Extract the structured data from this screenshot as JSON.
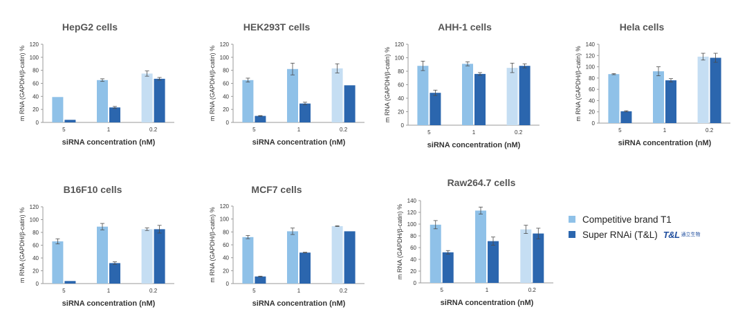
{
  "colors": {
    "competitive": "#8fc1e8",
    "competitive_light": "#c5def3",
    "super": "#2b66ae",
    "axis": "#9a9a9a",
    "text": "#333333",
    "title": "#555555"
  },
  "legend": {
    "competitive_label": "Competitive brand T1",
    "super_label": "Super RNAi (T&L)",
    "logo_text": "T&L",
    "logo_cn": "通立生物"
  },
  "chart_data": [
    {
      "type": "bar",
      "title": "HepG2 cells",
      "xlabel": "siRNA concentration (nM)",
      "ylabel": "m RNA (GAPDH/β-catin) %",
      "ylim": [
        0,
        120
      ],
      "yticks": [
        0,
        20,
        40,
        60,
        80,
        100,
        120
      ],
      "categories": [
        "5",
        "1",
        "0.2"
      ],
      "series": [
        {
          "name": "Competitive brand T1",
          "values": [
            39,
            65,
            75
          ],
          "errors": [
            0,
            2,
            4
          ]
        },
        {
          "name": "Super RNAi (T&L)",
          "values": [
            4,
            23,
            67
          ],
          "errors": [
            0,
            1.5,
            2
          ]
        }
      ]
    },
    {
      "type": "bar",
      "title": "HEK293T cells",
      "xlabel": "siRNA concentration (nM)",
      "ylabel": "m RNA (GAPDH/β-catin) %",
      "ylim": [
        0,
        120
      ],
      "yticks": [
        0,
        20,
        40,
        60,
        80,
        100,
        120
      ],
      "categories": [
        "5",
        "1",
        "0.2"
      ],
      "series": [
        {
          "name": "Competitive brand T1",
          "values": [
            65,
            82,
            83
          ],
          "errors": [
            3,
            9,
            7
          ]
        },
        {
          "name": "Super RNAi (T&L)",
          "values": [
            10,
            29,
            57
          ],
          "errors": [
            0.5,
            2,
            0
          ]
        }
      ]
    },
    {
      "type": "bar",
      "title": "AHH-1 cells",
      "xlabel": "siRNA concentration (nM)",
      "ylabel": "m RNA (GAPDH/β-catin) %",
      "ylim": [
        0,
        120
      ],
      "yticks": [
        0,
        20,
        40,
        60,
        80,
        100,
        120
      ],
      "categories": [
        "5",
        "1",
        "0.2"
      ],
      "series": [
        {
          "name": "Competitive brand T1",
          "values": [
            88,
            91,
            85
          ],
          "errors": [
            7,
            3,
            7
          ]
        },
        {
          "name": "Super RNAi (T&L)",
          "values": [
            48,
            76,
            88
          ],
          "errors": [
            4,
            2,
            3
          ]
        }
      ]
    },
    {
      "type": "bar",
      "title": "Hela cells",
      "xlabel": "siRNA concentration (nM)",
      "ylabel": "m RNA (GAPDH/β-catin) %",
      "ylim": [
        0,
        140
      ],
      "yticks": [
        0,
        20,
        40,
        60,
        80,
        100,
        120,
        140
      ],
      "categories": [
        "5",
        "1",
        "0.2"
      ],
      "series": [
        {
          "name": "Competitive brand T1",
          "values": [
            87,
            92,
            118
          ],
          "errors": [
            1,
            8,
            6
          ]
        },
        {
          "name": "Super RNAi (T&L)",
          "values": [
            21,
            76,
            116
          ],
          "errors": [
            1,
            3,
            8
          ]
        }
      ]
    },
    {
      "type": "bar",
      "title": "B16F10 cells",
      "xlabel": "siRNA concentration (nM)",
      "ylabel": "m RNA (GAPDH/β-catin) %",
      "ylim": [
        0,
        120
      ],
      "yticks": [
        0,
        20,
        40,
        60,
        80,
        100,
        120
      ],
      "categories": [
        "5",
        "1",
        "0.2"
      ],
      "series": [
        {
          "name": "Competitive brand T1",
          "values": [
            66,
            89,
            85
          ],
          "errors": [
            4,
            5,
            2
          ]
        },
        {
          "name": "Super RNAi (T&L)",
          "values": [
            4,
            32,
            85
          ],
          "errors": [
            0,
            2,
            6
          ]
        }
      ]
    },
    {
      "type": "bar",
      "title": "MCF7 cells",
      "xlabel": "siRNA concentration (nM)",
      "ylabel": "m RNA (GAPDH/β-catin) %",
      "ylim": [
        0,
        120
      ],
      "yticks": [
        0,
        20,
        40,
        60,
        80,
        100,
        120
      ],
      "categories": [
        "5",
        "1",
        "0.2"
      ],
      "series": [
        {
          "name": "Competitive brand T1",
          "values": [
            72,
            81,
            89
          ],
          "errors": [
            2.5,
            5,
            0.5
          ]
        },
        {
          "name": "Super RNAi (T&L)",
          "values": [
            11,
            48,
            81
          ],
          "errors": [
            0.5,
            0.5,
            0
          ]
        }
      ]
    },
    {
      "type": "bar",
      "title": "Raw264.7 cells",
      "xlabel": "siRNA concentration (nM)",
      "ylabel": "m RNA (GAPDH/β-catin) %",
      "ylim": [
        0,
        140
      ],
      "yticks": [
        0,
        20,
        40,
        60,
        80,
        100,
        120,
        140
      ],
      "categories": [
        "5",
        "1",
        "0.2"
      ],
      "series": [
        {
          "name": "Competitive brand T1",
          "values": [
            99,
            123,
            91
          ],
          "errors": [
            7,
            6,
            7
          ]
        },
        {
          "name": "Super RNAi (T&L)",
          "values": [
            52,
            71,
            84
          ],
          "errors": [
            3,
            7,
            9
          ]
        }
      ]
    }
  ]
}
